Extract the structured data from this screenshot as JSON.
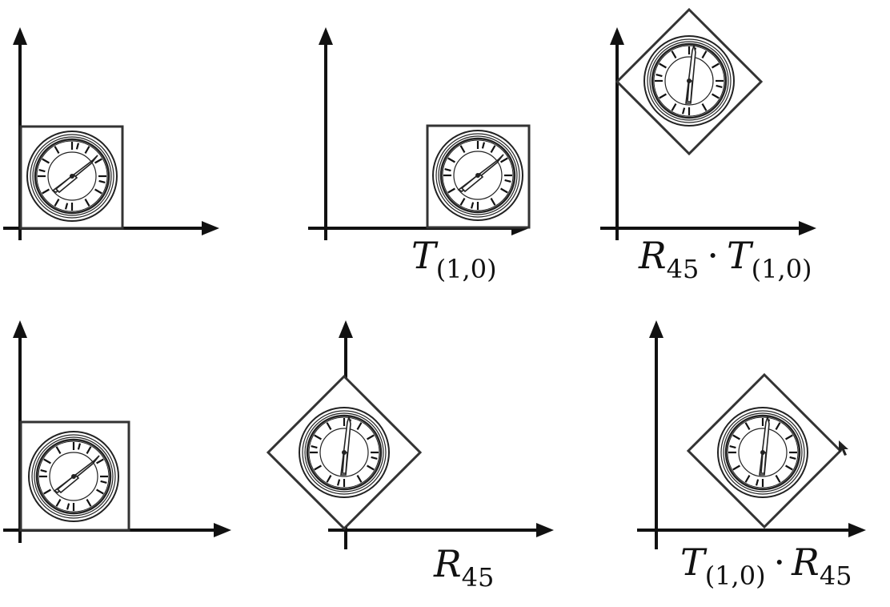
{
  "panels": [
    {
      "id": "top-original",
      "label": null
    },
    {
      "id": "top-translated",
      "label": {
        "main": "T",
        "sub": "(1,0)"
      }
    },
    {
      "id": "top-rotated-after-translate",
      "label": {
        "main": "R",
        "sub": "45",
        "op": "·",
        "main2": "T",
        "sub2": "(1,0)"
      }
    },
    {
      "id": "bottom-original",
      "label": null
    },
    {
      "id": "bottom-rotated",
      "label": {
        "main": "R",
        "sub": "45"
      }
    },
    {
      "id": "bottom-translated-after-rotate",
      "label": {
        "main": "T",
        "sub": "(1,0)",
        "op": "·",
        "main2": "R",
        "sub2": "45"
      }
    }
  ],
  "colors": {
    "ink": "#111111",
    "frame": "#333333",
    "background": "#ffffff"
  },
  "icons": [
    "clock-icon",
    "mouse-cursor-icon"
  ]
}
